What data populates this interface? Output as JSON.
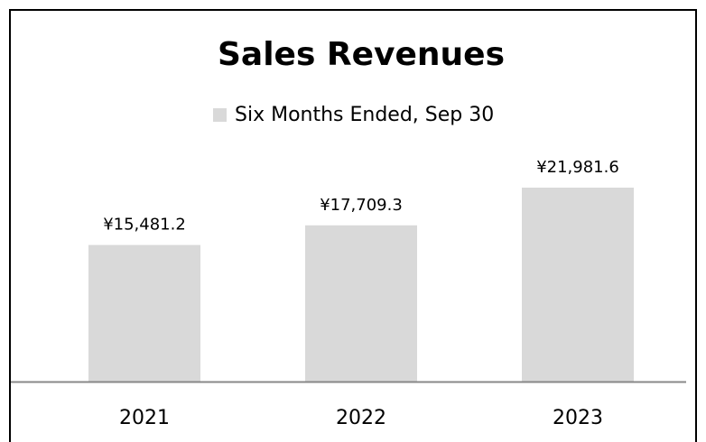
{
  "chart_data": {
    "type": "bar",
    "title": "Sales Revenues",
    "categories": [
      "2021",
      "2022",
      "2023"
    ],
    "series": [
      {
        "name": "Six Months Ended, Sep 30",
        "color": "#d9d9d9",
        "values": [
          15481.2,
          17709.3,
          21981.6
        ],
        "value_labels": [
          "¥15,481.2",
          "¥17,709.3",
          "¥21,981.6"
        ]
      }
    ],
    "legend": "top"
  }
}
